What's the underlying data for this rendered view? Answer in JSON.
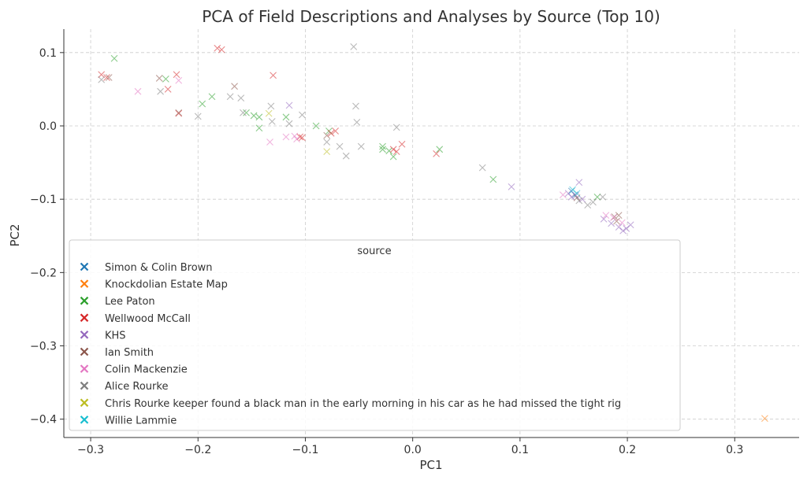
{
  "chart_data": {
    "type": "scatter",
    "title": "PCA of Field Descriptions and Analyses by Source (Top 10)",
    "xlabel": "PC1",
    "ylabel": "PC2",
    "xlim": [
      -0.325,
      0.36
    ],
    "ylim": [
      -0.425,
      0.132
    ],
    "x_ticks": [
      -0.3,
      -0.2,
      -0.1,
      0.0,
      0.1,
      0.2,
      0.3
    ],
    "x_tick_labels": [
      "−0.3",
      "−0.2",
      "−0.1",
      "0.0",
      "0.1",
      "0.2",
      "0.3"
    ],
    "y_ticks": [
      0.1,
      0.0,
      -0.1,
      -0.2,
      -0.3,
      -0.4
    ],
    "y_tick_labels": [
      "0.1",
      "0.0",
      "−0.1",
      "−0.2",
      "−0.3",
      "−0.4"
    ],
    "grid": true,
    "marker": "x",
    "legend": {
      "title": "source",
      "placement": "lower-left"
    },
    "series": [
      {
        "name": "Simon & Colin Brown",
        "color": "#1f77b4",
        "points": [
          [
            0.148,
            -0.089
          ],
          [
            0.151,
            -0.094
          ]
        ]
      },
      {
        "name": "Knockdolian Estate Map",
        "color": "#ff7f0e",
        "points": [
          [
            0.328,
            -0.399
          ]
        ]
      },
      {
        "name": "Lee Paton",
        "color": "#2ca02c",
        "points": [
          [
            -0.278,
            0.092
          ],
          [
            -0.23,
            0.064
          ],
          [
            -0.187,
            0.04
          ],
          [
            -0.196,
            0.03
          ],
          [
            -0.155,
            0.018
          ],
          [
            -0.148,
            0.014
          ],
          [
            -0.143,
            0.012
          ],
          [
            -0.143,
            -0.003
          ],
          [
            -0.118,
            0.012
          ],
          [
            -0.09,
            0.0
          ],
          [
            -0.078,
            -0.007
          ],
          [
            -0.028,
            -0.028
          ],
          [
            -0.028,
            -0.032
          ],
          [
            -0.022,
            -0.034
          ],
          [
            -0.018,
            -0.042
          ],
          [
            0.025,
            -0.032
          ],
          [
            0.075,
            -0.073
          ],
          [
            0.172,
            -0.097
          ]
        ]
      },
      {
        "name": "Wellwood McCall",
        "color": "#d62728",
        "points": [
          [
            -0.29,
            0.07
          ],
          [
            -0.285,
            0.066
          ],
          [
            -0.228,
            0.05
          ],
          [
            -0.22,
            0.07
          ],
          [
            -0.218,
            0.017
          ],
          [
            -0.182,
            0.106
          ],
          [
            -0.178,
            0.104
          ],
          [
            -0.13,
            0.069
          ],
          [
            -0.105,
            -0.015
          ],
          [
            -0.103,
            -0.016
          ],
          [
            -0.076,
            -0.01
          ],
          [
            -0.072,
            -0.007
          ],
          [
            -0.018,
            -0.032
          ],
          [
            -0.015,
            -0.035
          ],
          [
            -0.01,
            -0.025
          ],
          [
            0.022,
            -0.038
          ]
        ]
      },
      {
        "name": "KHS",
        "color": "#9467bd",
        "points": [
          [
            -0.115,
            0.028
          ],
          [
            0.092,
            -0.083
          ],
          [
            0.145,
            -0.092
          ],
          [
            0.148,
            -0.097
          ],
          [
            0.152,
            -0.095
          ],
          [
            0.155,
            -0.077
          ],
          [
            0.158,
            -0.1
          ],
          [
            0.178,
            -0.127
          ],
          [
            0.185,
            -0.133
          ],
          [
            0.192,
            -0.138
          ],
          [
            0.196,
            -0.143
          ],
          [
            0.199,
            -0.14
          ],
          [
            0.203,
            -0.135
          ]
        ]
      },
      {
        "name": "Ian Smith",
        "color": "#8c564b",
        "points": [
          [
            -0.283,
            0.066
          ],
          [
            -0.236,
            0.065
          ],
          [
            -0.218,
            0.018
          ],
          [
            -0.166,
            0.054
          ],
          [
            -0.08,
            -0.013
          ],
          [
            0.153,
            -0.098
          ],
          [
            0.188,
            -0.124
          ],
          [
            0.19,
            -0.13
          ],
          [
            0.192,
            -0.122
          ]
        ]
      },
      {
        "name": "Colin Mackenzie",
        "color": "#e377c2",
        "points": [
          [
            -0.256,
            0.047
          ],
          [
            -0.218,
            0.062
          ],
          [
            -0.133,
            -0.022
          ],
          [
            -0.118,
            -0.015
          ],
          [
            -0.11,
            -0.014
          ],
          [
            -0.108,
            -0.018
          ],
          [
            0.14,
            -0.094
          ],
          [
            0.18,
            -0.122
          ],
          [
            0.187,
            -0.125
          ],
          [
            0.195,
            -0.132
          ]
        ]
      },
      {
        "name": "Alice Rourke",
        "color": "#7f7f7f",
        "points": [
          [
            -0.29,
            0.063
          ],
          [
            -0.235,
            0.047
          ],
          [
            -0.2,
            0.013
          ],
          [
            -0.17,
            0.04
          ],
          [
            -0.16,
            0.038
          ],
          [
            -0.158,
            0.018
          ],
          [
            -0.132,
            0.027
          ],
          [
            -0.131,
            0.006
          ],
          [
            -0.115,
            0.003
          ],
          [
            -0.103,
            0.015
          ],
          [
            -0.08,
            -0.022
          ],
          [
            -0.068,
            -0.028
          ],
          [
            -0.062,
            -0.041
          ],
          [
            -0.055,
            0.108
          ],
          [
            -0.053,
            0.027
          ],
          [
            -0.052,
            0.005
          ],
          [
            -0.048,
            -0.028
          ],
          [
            -0.015,
            -0.002
          ],
          [
            0.065,
            -0.057
          ],
          [
            0.155,
            -0.102
          ],
          [
            0.163,
            -0.108
          ],
          [
            0.168,
            -0.104
          ],
          [
            0.177,
            -0.097
          ]
        ]
      },
      {
        "name": "Chris Rourke keeper found a black man in the early morning in his car as he had missed the tight rig",
        "color": "#bcbd22",
        "points": [
          [
            -0.134,
            0.017
          ],
          [
            -0.08,
            -0.035
          ]
        ]
      },
      {
        "name": "Willie Lammie",
        "color": "#17becf",
        "points": [
          [
            0.149,
            -0.087
          ],
          [
            0.153,
            -0.092
          ]
        ]
      }
    ]
  }
}
